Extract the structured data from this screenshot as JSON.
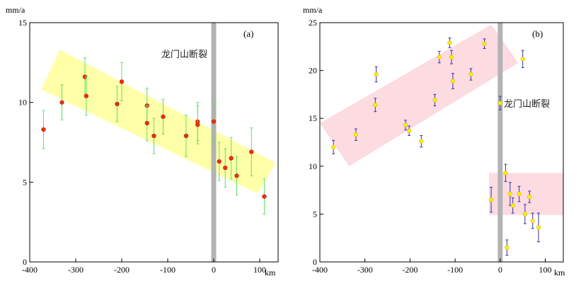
{
  "chart_data": [
    {
      "type": "scatter",
      "panel_label": "(a)",
      "ylabel": "mm/a",
      "xlabel": "km",
      "fault_label": "龙门山断裂",
      "xlim": [
        -400,
        140
      ],
      "ylim": [
        0,
        15
      ],
      "xticks": [
        -400,
        -300,
        -200,
        -100,
        0,
        100
      ],
      "xtick_labels": [
        "-400",
        "-300",
        "-200",
        "-100",
        "0",
        "100"
      ],
      "yticks": [
        0,
        5,
        10,
        15
      ],
      "ytick_labels": [
        "0",
        "5",
        "10",
        "15"
      ],
      "grid": false,
      "colors": {
        "point": "#e8340a",
        "point_edge": "#c00000",
        "error_bar": "#66dd66",
        "band": "#ffff99",
        "fault_bar": "#b3b3b3"
      },
      "fault_x": 0,
      "band": [
        [
          -375,
          10.8
        ],
        [
          -335,
          13.3
        ],
        [
          135,
          6.2
        ],
        [
          95,
          4.3
        ]
      ],
      "points": [
        {
          "x": -370,
          "y": 8.3,
          "err": 1.2
        },
        {
          "x": -330,
          "y": 10.0,
          "err": 1.1
        },
        {
          "x": -280,
          "y": 11.6,
          "err": 1.2
        },
        {
          "x": -277,
          "y": 10.4,
          "err": 1.2
        },
        {
          "x": -210,
          "y": 9.9,
          "err": 1.1
        },
        {
          "x": -200,
          "y": 11.3,
          "err": 1.2
        },
        {
          "x": -145,
          "y": 9.8,
          "err": 1.1
        },
        {
          "x": -145,
          "y": 8.7,
          "err": 1.1
        },
        {
          "x": -130,
          "y": 7.9,
          "err": 1.1
        },
        {
          "x": -110,
          "y": 9.1,
          "err": 1.1
        },
        {
          "x": -60,
          "y": 7.9,
          "err": 1.3
        },
        {
          "x": -35,
          "y": 8.8,
          "err": 1.2
        },
        {
          "x": -35,
          "y": 8.6,
          "err": 1.2
        },
        {
          "x": 0,
          "y": 8.8,
          "err": 1.3
        },
        {
          "x": 12,
          "y": 6.3,
          "err": 1.2
        },
        {
          "x": 25,
          "y": 5.9,
          "err": 1.2
        },
        {
          "x": 38,
          "y": 6.5,
          "err": 1.3
        },
        {
          "x": 50,
          "y": 5.4,
          "err": 1.2
        },
        {
          "x": 82,
          "y": 6.9,
          "err": 1.5
        },
        {
          "x": 110,
          "y": 4.1,
          "err": 1.1
        }
      ]
    },
    {
      "type": "scatter",
      "panel_label": "(b)",
      "ylabel": "mm/a",
      "xlabel": "km",
      "fault_label": "龙门山断裂",
      "xlim": [
        -400,
        140
      ],
      "ylim": [
        0,
        25
      ],
      "xticks": [
        -400,
        -300,
        -200,
        -100,
        0,
        100
      ],
      "xtick_labels": [
        "-400",
        "-300",
        "-200",
        "-100",
        "0",
        "100"
      ],
      "yticks": [
        0,
        5,
        10,
        15,
        20,
        25
      ],
      "ytick_labels": [
        "0",
        "5",
        "10",
        "15",
        "20",
        "25"
      ],
      "grid": false,
      "colors": {
        "point": "#ffee00",
        "point_edge": "#d9b800",
        "error_bar": "#3333aa",
        "band": "#fbd5dc",
        "fault_bar": "#b3b3b3"
      },
      "fault_x": 0,
      "band": [
        [
          -400,
          14.5
        ],
        [
          -20,
          24.8
        ],
        [
          40,
          20.8
        ],
        [
          -335,
          10.0
        ]
      ],
      "band2": [
        [
          -25,
          9.3
        ],
        [
          140,
          9.3
        ],
        [
          140,
          4.9
        ],
        [
          -25,
          4.9
        ]
      ],
      "points": [
        {
          "x": -370,
          "y": 12.0,
          "err": 0.7
        },
        {
          "x": -320,
          "y": 13.3,
          "err": 0.6
        },
        {
          "x": -275,
          "y": 19.6,
          "err": 0.8
        },
        {
          "x": -277,
          "y": 16.4,
          "err": 0.7
        },
        {
          "x": -210,
          "y": 14.3,
          "err": 0.5
        },
        {
          "x": -202,
          "y": 13.7,
          "err": 0.5
        },
        {
          "x": -175,
          "y": 12.6,
          "err": 0.6
        },
        {
          "x": -145,
          "y": 16.9,
          "err": 0.6
        },
        {
          "x": -135,
          "y": 21.4,
          "err": 0.6
        },
        {
          "x": -112,
          "y": 22.9,
          "err": 0.5
        },
        {
          "x": -108,
          "y": 21.4,
          "err": 0.7
        },
        {
          "x": -105,
          "y": 18.9,
          "err": 0.8
        },
        {
          "x": -65,
          "y": 19.6,
          "err": 0.6
        },
        {
          "x": -35,
          "y": 22.8,
          "err": 0.5
        },
        {
          "x": 0,
          "y": 16.6,
          "err": 0.7
        },
        {
          "x": 50,
          "y": 21.2,
          "err": 0.9
        },
        {
          "x": -20,
          "y": 6.5,
          "err": 1.3
        },
        {
          "x": 12,
          "y": 9.3,
          "err": 0.9
        },
        {
          "x": 22,
          "y": 7.1,
          "err": 1.2
        },
        {
          "x": 28,
          "y": 5.9,
          "err": 0.8
        },
        {
          "x": 42,
          "y": 7.1,
          "err": 0.8
        },
        {
          "x": 55,
          "y": 5.0,
          "err": 1.0
        },
        {
          "x": 65,
          "y": 6.8,
          "err": 0.6
        },
        {
          "x": 72,
          "y": 4.3,
          "err": 0.8
        },
        {
          "x": 85,
          "y": 3.6,
          "err": 1.5
        },
        {
          "x": 15,
          "y": 1.5,
          "err": 0.8
        }
      ]
    }
  ]
}
